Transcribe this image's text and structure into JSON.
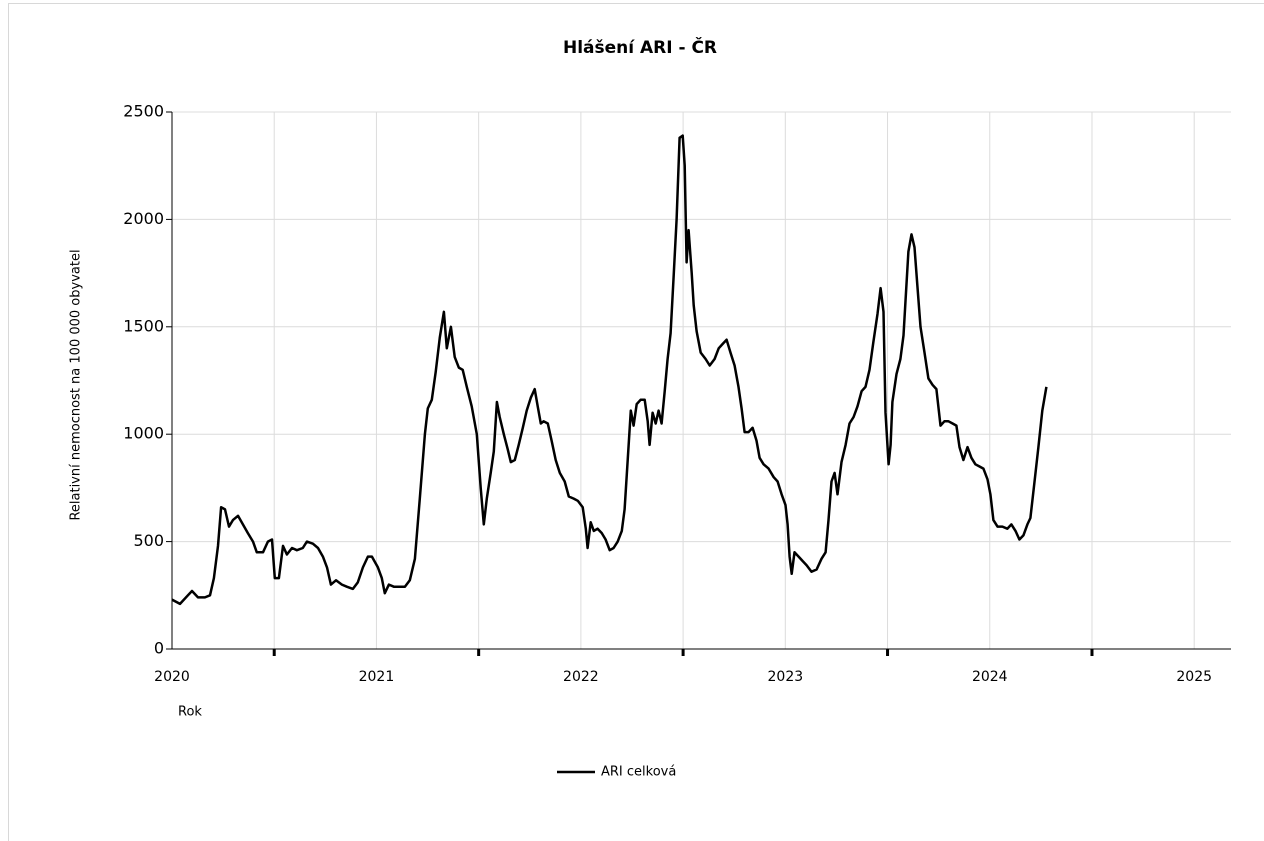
{
  "chart_data": {
    "type": "line",
    "title": "Hlášení ARI - ČR",
    "x_label": "Rok",
    "y_label": "Relativní nemocnost na 100 000 obyvatel",
    "xlim": [
      2020,
      2025.18
    ],
    "xticks": [
      2020,
      2021,
      2022,
      2023,
      2024,
      2025
    ],
    "xminorticks": [
      2020.5,
      2021.5,
      2022.5,
      2023.5,
      2024.5
    ],
    "ylim": [
      0,
      2500
    ],
    "yticks": [
      0,
      500,
      1000,
      1500,
      2000,
      2500
    ],
    "grid": true,
    "legend": "bottom",
    "x": [
      2020.0,
      2020.039,
      2020.078,
      2020.098,
      2020.127,
      2020.161,
      2020.186,
      2020.205,
      2020.225,
      2020.24,
      2020.259,
      2020.279,
      2020.298,
      2020.323,
      2020.347,
      2020.371,
      2020.396,
      2020.415,
      2020.445,
      2020.469,
      2020.489,
      2020.503,
      2020.523,
      2020.543,
      2020.562,
      2020.587,
      2020.611,
      2020.64,
      2020.66,
      2020.689,
      2020.714,
      2020.738,
      2020.758,
      2020.777,
      2020.802,
      2020.831,
      2020.855,
      2020.885,
      2020.909,
      2020.934,
      2020.958,
      2020.978,
      2021.007,
      2021.026,
      2021.041,
      2021.061,
      2021.085,
      2021.11,
      2021.139,
      2021.163,
      2021.188,
      2021.212,
      2021.237,
      2021.251,
      2021.271,
      2021.29,
      2021.31,
      2021.33,
      2021.344,
      2021.364,
      2021.383,
      2021.403,
      2021.422,
      2021.442,
      2021.466,
      2021.491,
      2021.51,
      2021.525,
      2021.54,
      2021.559,
      2021.574,
      2021.589,
      2021.603,
      2021.623,
      2021.642,
      2021.657,
      2021.677,
      2021.696,
      2021.716,
      2021.735,
      2021.755,
      2021.774,
      2021.789,
      2021.804,
      2021.818,
      2021.838,
      2021.857,
      2021.877,
      2021.897,
      2021.921,
      2021.941,
      2021.965,
      2021.985,
      2022.009,
      2022.024,
      2022.033,
      2022.048,
      2022.063,
      2022.082,
      2022.102,
      2022.121,
      2022.141,
      2022.16,
      2022.18,
      2022.2,
      2022.214,
      2022.229,
      2022.244,
      2022.258,
      2022.273,
      2022.292,
      2022.312,
      2022.327,
      2022.336,
      2022.351,
      2022.366,
      2022.38,
      2022.395,
      2022.41,
      2022.424,
      2022.439,
      2022.454,
      2022.468,
      2022.483,
      2022.498,
      2022.508,
      2022.517,
      2022.527,
      2022.542,
      2022.552,
      2022.566,
      2022.586,
      2022.61,
      2022.63,
      2022.654,
      2022.674,
      2022.693,
      2022.713,
      2022.732,
      2022.752,
      2022.771,
      2022.786,
      2022.801,
      2022.82,
      2022.84,
      2022.859,
      2022.874,
      2022.894,
      2022.918,
      2022.943,
      2022.962,
      2022.982,
      2023.001,
      2023.011,
      2023.021,
      2023.031,
      2023.045,
      2023.065,
      2023.084,
      2023.104,
      2023.128,
      2023.153,
      2023.177,
      2023.197,
      2023.211,
      2023.226,
      2023.241,
      2023.255,
      2023.275,
      2023.295,
      2023.314,
      2023.334,
      2023.353,
      2023.373,
      2023.392,
      2023.412,
      2023.431,
      2023.451,
      2023.466,
      2023.48,
      2023.49,
      2023.505,
      2023.515,
      2023.524,
      2023.544,
      2023.563,
      2023.578,
      2023.588,
      2023.602,
      2023.617,
      2023.632,
      2023.646,
      2023.661,
      2023.681,
      2023.7,
      2023.72,
      2023.739,
      2023.759,
      2023.778,
      2023.798,
      2023.818,
      2023.837,
      2023.852,
      2023.871,
      2023.891,
      2023.91,
      2023.93,
      2023.949,
      2023.969,
      2023.989,
      2024.003,
      2024.018,
      2024.038,
      2024.062,
      2024.086,
      2024.106,
      2024.126,
      2024.145,
      2024.165,
      2024.184,
      2024.199,
      2024.218,
      2024.238,
      2024.257,
      2024.277
    ],
    "series": [
      {
        "name": "ARI celková",
        "color": "#000000",
        "values": [
          230,
          210,
          250,
          270,
          240,
          240,
          250,
          330,
          480,
          660,
          650,
          570,
          600,
          620,
          580,
          540,
          500,
          450,
          450,
          500,
          510,
          330,
          330,
          480,
          440,
          470,
          460,
          470,
          500,
          490,
          470,
          430,
          380,
          300,
          320,
          300,
          290,
          280,
          310,
          380,
          430,
          430,
          380,
          330,
          260,
          300,
          290,
          290,
          290,
          320,
          420,
          700,
          1000,
          1120,
          1160,
          1290,
          1450,
          1570,
          1400,
          1500,
          1360,
          1310,
          1300,
          1220,
          1130,
          1000,
          750,
          580,
          700,
          820,
          920,
          1150,
          1080,
          1000,
          930,
          870,
          880,
          950,
          1030,
          1110,
          1170,
          1210,
          1130,
          1050,
          1060,
          1050,
          970,
          880,
          820,
          780,
          710,
          700,
          690,
          660,
          560,
          470,
          590,
          550,
          560,
          540,
          510,
          460,
          470,
          500,
          550,
          650,
          880,
          1110,
          1040,
          1140,
          1160,
          1160,
          1060,
          950,
          1100,
          1050,
          1110,
          1050,
          1200,
          1350,
          1470,
          1740,
          2000,
          2380,
          2390,
          2250,
          1800,
          1950,
          1750,
          1600,
          1480,
          1380,
          1350,
          1320,
          1350,
          1400,
          1420,
          1440,
          1380,
          1320,
          1220,
          1120,
          1010,
          1010,
          1030,
          970,
          890,
          860,
          840,
          800,
          780,
          720,
          670,
          580,
          430,
          350,
          450,
          430,
          410,
          390,
          360,
          370,
          420,
          450,
          600,
          780,
          820,
          720,
          870,
          950,
          1050,
          1080,
          1130,
          1200,
          1220,
          1300,
          1430,
          1560,
          1680,
          1570,
          1100,
          860,
          950,
          1150,
          1280,
          1350,
          1460,
          1620,
          1850,
          1930,
          1870,
          1690,
          1500,
          1380,
          1260,
          1230,
          1210,
          1040,
          1060,
          1060,
          1050,
          1040,
          940,
          880,
          940,
          890,
          860,
          850,
          840,
          790,
          720,
          600,
          570,
          570,
          560,
          580,
          550,
          510,
          530,
          580,
          610,
          770,
          940,
          1110,
          1220
        ]
      }
    ]
  }
}
